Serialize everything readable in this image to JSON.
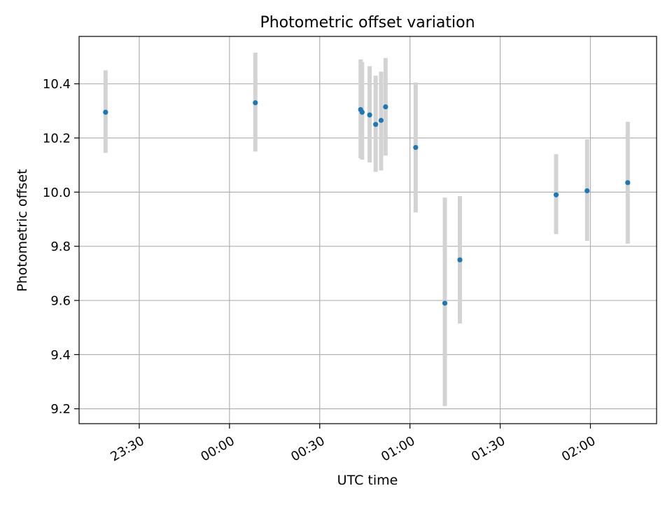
{
  "chart_data": {
    "type": "scatter",
    "title": "Photometric offset variation",
    "xlabel": "UTC time",
    "ylabel": "Photometric offset",
    "x_axis_kind": "time",
    "xlim": [
      "23:10",
      "02:22"
    ],
    "ylim": [
      9.145,
      10.575
    ],
    "x_ticks": [
      "23:30",
      "00:00",
      "00:30",
      "01:00",
      "01:30",
      "02:00"
    ],
    "y_ticks": [
      "9.2",
      "9.4",
      "9.6",
      "9.8",
      "10.0",
      "10.2",
      "10.4"
    ],
    "grid": true,
    "point_color": "#1f77b4",
    "errorbar_color": "#d3d3d3",
    "points": [
      {
        "x": "23:18.8",
        "y": 10.295,
        "ylow": 10.145,
        "yhigh": 10.45
      },
      {
        "x": "00:08.6",
        "y": 10.33,
        "ylow": 10.15,
        "yhigh": 10.515
      },
      {
        "x": "00:43.6",
        "y": 10.305,
        "ylow": 10.125,
        "yhigh": 10.49
      },
      {
        "x": "00:44.1",
        "y": 10.295,
        "ylow": 10.12,
        "yhigh": 10.48
      },
      {
        "x": "00:46.6",
        "y": 10.285,
        "ylow": 10.11,
        "yhigh": 10.465
      },
      {
        "x": "00:48.6",
        "y": 10.25,
        "ylow": 10.075,
        "yhigh": 10.43
      },
      {
        "x": "00:50.4",
        "y": 10.265,
        "ylow": 10.08,
        "yhigh": 10.445
      },
      {
        "x": "00:51.9",
        "y": 10.315,
        "ylow": 10.135,
        "yhigh": 10.495
      },
      {
        "x": "01:01.9",
        "y": 10.165,
        "ylow": 9.925,
        "yhigh": 10.405
      },
      {
        "x": "01:11.6",
        "y": 9.59,
        "ylow": 9.21,
        "yhigh": 9.98
      },
      {
        "x": "01:16.6",
        "y": 9.75,
        "ylow": 9.515,
        "yhigh": 9.985
      },
      {
        "x": "01:48.6",
        "y": 9.99,
        "ylow": 9.845,
        "yhigh": 10.14
      },
      {
        "x": "01:58.9",
        "y": 10.005,
        "ylow": 9.82,
        "yhigh": 10.195
      },
      {
        "x": "02:12.4",
        "y": 10.035,
        "ylow": 9.81,
        "yhigh": 10.26
      }
    ]
  }
}
